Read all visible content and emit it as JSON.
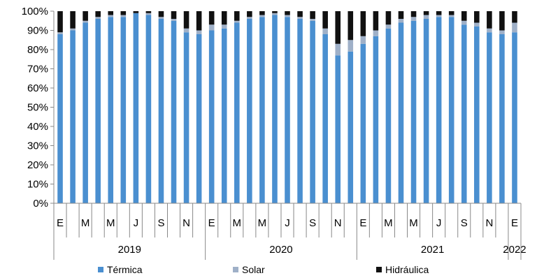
{
  "chart_data": {
    "type": "bar",
    "stacked": true,
    "title": "",
    "xlabel": "",
    "ylabel": "",
    "ylim": [
      0,
      100
    ],
    "y_tick_labels": [
      "0%",
      "10%",
      "20%",
      "30%",
      "40%",
      "50%",
      "60%",
      "70%",
      "80%",
      "90%",
      "100%"
    ],
    "grid": false,
    "legend_position": "bottom",
    "month_labels": [
      "E",
      "",
      "M",
      "",
      "M",
      "",
      "J",
      "",
      "S",
      "",
      "N",
      "",
      "E",
      "",
      "M",
      "",
      "M",
      "",
      "J",
      "",
      "S",
      "",
      "N",
      "",
      "E",
      "",
      "M",
      "",
      "M",
      "",
      "J",
      "",
      "S",
      "",
      "N",
      "",
      "E"
    ],
    "year_groups": [
      {
        "label": "2019",
        "start": 0,
        "count": 12
      },
      {
        "label": "2020",
        "start": 12,
        "count": 12
      },
      {
        "label": "2021",
        "start": 24,
        "count": 12
      },
      {
        "label": "2022",
        "start": 36,
        "count": 1
      }
    ],
    "series": [
      {
        "name": "Térmica",
        "color": "#4a8fd0",
        "values": [
          88,
          90,
          94,
          96,
          97,
          97,
          99,
          98,
          96,
          95,
          89,
          88,
          90,
          91,
          94,
          96,
          97,
          98,
          97,
          96,
          95,
          88,
          77,
          79,
          83,
          87,
          91,
          94,
          95,
          96,
          97,
          97,
          93,
          92,
          89,
          88,
          89
        ]
      },
      {
        "name": "Solar",
        "color": "#9fb0c8",
        "values": [
          1,
          1,
          1,
          1,
          1,
          1,
          0,
          1,
          1,
          1,
          2,
          2,
          3,
          2,
          1,
          1,
          1,
          1,
          1,
          1,
          1,
          3,
          6,
          6,
          4,
          3,
          2,
          2,
          2,
          2,
          1,
          1,
          2,
          2,
          2,
          2,
          5
        ]
      },
      {
        "name": "Hidráulica",
        "color": "#111111",
        "values": [
          11,
          9,
          5,
          3,
          2,
          2,
          1,
          1,
          3,
          4,
          9,
          10,
          7,
          7,
          5,
          3,
          2,
          1,
          2,
          3,
          4,
          9,
          17,
          15,
          13,
          10,
          7,
          4,
          3,
          2,
          2,
          2,
          5,
          6,
          9,
          10,
          6
        ]
      }
    ]
  }
}
